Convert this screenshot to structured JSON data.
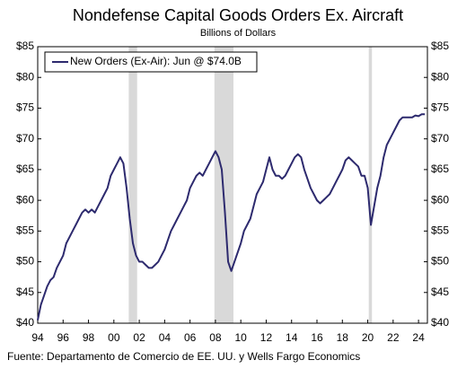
{
  "chart_data": {
    "type": "line",
    "title": "Nondefense Capital Goods Orders Ex. Aircraft",
    "subtitle": "Billions of Dollars",
    "source": "Fuente: Departamento de Comercio de EE. UU. y Wells Fargo Economics",
    "x": [
      1994,
      1994.25,
      1994.5,
      1994.75,
      1995,
      1995.25,
      1995.5,
      1995.75,
      1996,
      1996.25,
      1996.5,
      1996.75,
      1997,
      1997.25,
      1997.5,
      1997.75,
      1998,
      1998.25,
      1998.5,
      1998.75,
      1999,
      1999.25,
      1999.5,
      1999.75,
      2000,
      2000.25,
      2000.5,
      2000.75,
      2001,
      2001.25,
      2001.5,
      2001.75,
      2002,
      2002.25,
      2002.5,
      2002.75,
      2003,
      2003.25,
      2003.5,
      2003.75,
      2004,
      2004.25,
      2004.5,
      2004.75,
      2005,
      2005.25,
      2005.5,
      2005.75,
      2006,
      2006.25,
      2006.5,
      2006.75,
      2007,
      2007.25,
      2007.5,
      2007.75,
      2008,
      2008.25,
      2008.5,
      2008.75,
      2009,
      2009.25,
      2009.5,
      2009.75,
      2010,
      2010.25,
      2010.5,
      2010.75,
      2011,
      2011.25,
      2011.5,
      2011.75,
      2012,
      2012.25,
      2012.5,
      2012.75,
      2013,
      2013.25,
      2013.5,
      2013.75,
      2014,
      2014.25,
      2014.5,
      2014.75,
      2015,
      2015.25,
      2015.5,
      2015.75,
      2016,
      2016.25,
      2016.5,
      2016.75,
      2017,
      2017.25,
      2017.5,
      2017.75,
      2018,
      2018.25,
      2018.5,
      2018.75,
      2019,
      2019.25,
      2019.5,
      2019.75,
      2020,
      2020.25,
      2020.5,
      2020.75,
      2021,
      2021.25,
      2021.5,
      2021.75,
      2022,
      2022.25,
      2022.5,
      2022.75,
      2023,
      2023.25,
      2023.5,
      2023.75,
      2024,
      2024.25,
      2024.5
    ],
    "series": [
      {
        "name": "New Orders (Ex-Air): Jun @ $74.0B",
        "color": "#2d2a6e",
        "values": [
          40.5,
          43,
          44.5,
          46,
          47,
          47.5,
          49,
          50,
          51,
          53,
          54,
          55,
          56,
          57,
          58,
          58.5,
          58,
          58.5,
          58,
          59,
          60,
          61,
          62,
          64,
          65,
          66,
          67,
          66,
          62,
          57,
          53,
          51,
          50,
          50,
          49.5,
          49,
          49,
          49.5,
          50,
          51,
          52,
          53.5,
          55,
          56,
          57,
          58,
          59,
          60,
          62,
          63,
          64,
          64.5,
          64,
          65,
          66,
          67,
          68,
          67,
          65,
          58,
          50,
          48.5,
          50,
          51.5,
          53,
          55,
          56,
          57,
          59,
          61,
          62,
          63,
          65,
          67,
          65,
          64,
          64,
          63.5,
          64,
          65,
          66,
          67,
          67.5,
          67,
          65,
          63.5,
          62,
          61,
          60,
          59.5,
          60,
          60.5,
          61,
          62,
          63,
          64,
          65,
          66.5,
          67,
          66.5,
          66,
          65.5,
          64,
          64,
          62,
          56,
          59,
          62,
          64,
          67,
          69,
          70,
          71,
          72,
          73,
          73.5,
          73.5,
          73.5,
          73.5,
          73.8,
          73.7,
          74,
          74
        ]
      }
    ],
    "shaded_regions": [
      [
        2001.17,
        2001.83
      ],
      [
        2007.92,
        2009.42
      ],
      [
        2020.08,
        2020.33
      ]
    ],
    "xlim": [
      1994,
      2024.7
    ],
    "xticks": [
      {
        "value": 1994,
        "label": "94"
      },
      {
        "value": 1996,
        "label": "96"
      },
      {
        "value": 1998,
        "label": "98"
      },
      {
        "value": 2000,
        "label": "00"
      },
      {
        "value": 2002,
        "label": "02"
      },
      {
        "value": 2004,
        "label": "04"
      },
      {
        "value": 2006,
        "label": "06"
      },
      {
        "value": 2008,
        "label": "08"
      },
      {
        "value": 2010,
        "label": "10"
      },
      {
        "value": 2012,
        "label": "12"
      },
      {
        "value": 2014,
        "label": "14"
      },
      {
        "value": 2016,
        "label": "16"
      },
      {
        "value": 2018,
        "label": "18"
      },
      {
        "value": 2020,
        "label": "20"
      },
      {
        "value": 2022,
        "label": "22"
      },
      {
        "value": 2024,
        "label": "24"
      }
    ],
    "ylim": [
      40,
      85
    ],
    "yticks": [
      {
        "value": 40,
        "label": "$40"
      },
      {
        "value": 45,
        "label": "$45"
      },
      {
        "value": 50,
        "label": "$50"
      },
      {
        "value": 55,
        "label": "$55"
      },
      {
        "value": 60,
        "label": "$60"
      },
      {
        "value": 65,
        "label": "$65"
      },
      {
        "value": 70,
        "label": "$70"
      },
      {
        "value": 75,
        "label": "$75"
      },
      {
        "value": 80,
        "label": "$80"
      },
      {
        "value": 85,
        "label": "$85"
      }
    ],
    "shade_color": "#d9d9d9"
  }
}
